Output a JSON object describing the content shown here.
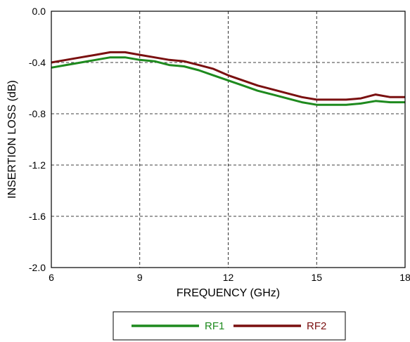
{
  "chart_data": {
    "type": "line",
    "xlabel": "FREQUENCY (GHz)",
    "ylabel": "INSERTION LOSS (dB)",
    "xlim": [
      6,
      18
    ],
    "ylim": [
      -2.0,
      0.0
    ],
    "x_ticks": [
      6,
      9,
      12,
      15,
      18
    ],
    "y_ticks": [
      0.0,
      -0.4,
      -0.8,
      -1.2,
      -1.6,
      -2.0
    ],
    "x_tick_labels": [
      "6",
      "9",
      "12",
      "15",
      "18"
    ],
    "y_tick_labels": [
      "0.0",
      "-0.4",
      "-0.8",
      "-1.2",
      "-1.6",
      "-2.0"
    ],
    "grid": true,
    "legend_position": "bottom-center",
    "series": [
      {
        "name": "RF1",
        "color": "#1e8a1e",
        "x": [
          6,
          6.5,
          7,
          7.5,
          8,
          8.5,
          9,
          9.5,
          10,
          10.5,
          11,
          11.5,
          12,
          12.5,
          13,
          13.5,
          14,
          14.5,
          15,
          15.5,
          16,
          16.5,
          17,
          17.5,
          18
        ],
        "y": [
          -0.44,
          -0.42,
          -0.4,
          -0.38,
          -0.36,
          -0.36,
          -0.38,
          -0.39,
          -0.42,
          -0.43,
          -0.46,
          -0.5,
          -0.54,
          -0.58,
          -0.62,
          -0.65,
          -0.68,
          -0.71,
          -0.73,
          -0.73,
          -0.73,
          -0.72,
          -0.7,
          -0.71,
          -0.71
        ]
      },
      {
        "name": "RF2",
        "color": "#7a1010",
        "x": [
          6,
          6.5,
          7,
          7.5,
          8,
          8.5,
          9,
          9.5,
          10,
          10.5,
          11,
          11.5,
          12,
          12.5,
          13,
          13.5,
          14,
          14.5,
          15,
          15.5,
          16,
          16.5,
          17,
          17.5,
          18
        ],
        "y": [
          -0.4,
          -0.38,
          -0.36,
          -0.34,
          -0.32,
          -0.32,
          -0.34,
          -0.36,
          -0.38,
          -0.39,
          -0.42,
          -0.45,
          -0.5,
          -0.54,
          -0.58,
          -0.61,
          -0.64,
          -0.67,
          -0.69,
          -0.69,
          -0.69,
          -0.68,
          -0.65,
          -0.67,
          -0.67
        ]
      }
    ]
  }
}
